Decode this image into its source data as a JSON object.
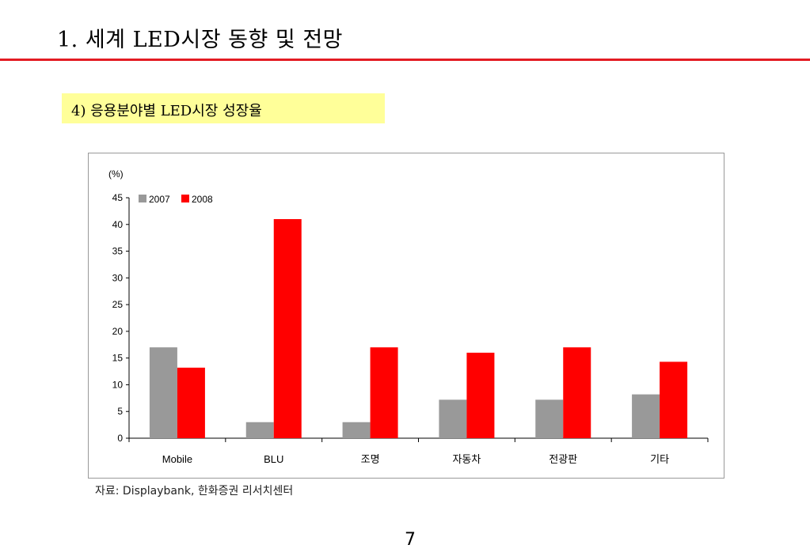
{
  "slide": {
    "title": "1. 세계 LED시장 동향 및 전망",
    "subtitle": "4) 응용분야별 LED시장 성장율",
    "source": "자료: Displaybank,  한화증권 리서치센터",
    "page_number": "7"
  },
  "colors": {
    "accent_rule": "#e31b23",
    "subtitle_highlight": "#ffff99",
    "series_2007": "#999999",
    "series_2008": "#ff0000"
  },
  "chart_data": {
    "type": "bar",
    "unit_label": "(%)",
    "categories": [
      "Mobile",
      "BLU",
      "조명",
      "자동차",
      "전광판",
      "기타"
    ],
    "series": [
      {
        "name": "2007",
        "values": [
          17,
          3,
          3,
          7.2,
          7.2,
          8.2
        ]
      },
      {
        "name": "2008",
        "values": [
          13.2,
          41,
          17,
          16,
          17,
          14.3
        ]
      }
    ],
    "ylim": [
      0,
      45
    ],
    "yticks": [
      0,
      5,
      10,
      15,
      20,
      25,
      30,
      35,
      40,
      45
    ],
    "grid": false,
    "legend_position": "top-left"
  }
}
